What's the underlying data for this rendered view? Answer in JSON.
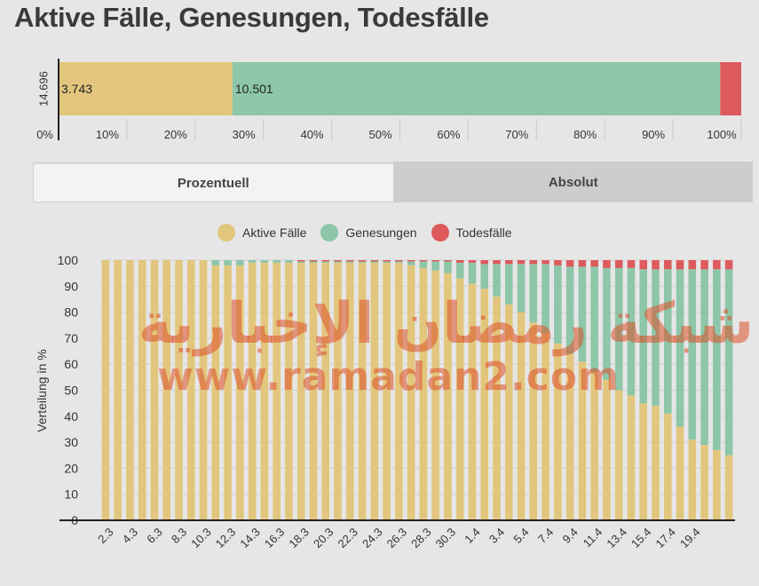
{
  "title": "Aktive Fälle, Genesungen, Todesfälle",
  "colors": {
    "active": "#e3c67d",
    "recovered": "#8dc6a8",
    "deaths": "#dd5a5d"
  },
  "summary": {
    "total_label": "14.696",
    "active_label": "3.743",
    "recovered_label": "10.501",
    "active_share": 0.2547,
    "recovered_share": 0.7145,
    "deaths_share": 0.0308,
    "ticks": [
      "0%",
      "10%",
      "20%",
      "30%",
      "40%",
      "50%",
      "60%",
      "70%",
      "80%",
      "90%",
      "100%"
    ]
  },
  "tabs": [
    {
      "label": "Prozentuell",
      "active": true
    },
    {
      "label": "Absolut",
      "active": false
    }
  ],
  "legend": [
    {
      "label": "Aktive Fälle",
      "color": "#e3c67d"
    },
    {
      "label": "Genesungen",
      "color": "#8dc6a8"
    },
    {
      "label": "Todesfälle",
      "color": "#dd5a5d"
    }
  ],
  "watermark": {
    "arabic": "شبكة رمضان الإخبارية",
    "url": "www.ramadan2.com"
  },
  "chart_data": {
    "type": "bar",
    "stacked": true,
    "ylabel": "Verteilung in %",
    "ylim": [
      0,
      100
    ],
    "yticks": [
      0,
      10,
      20,
      30,
      40,
      50,
      60,
      70,
      80,
      90,
      100
    ],
    "grid": true,
    "x_tick_labels": [
      "2.3",
      "4.3",
      "6.3",
      "8.3",
      "10.3",
      "12.3",
      "14.3",
      "16.3",
      "18.3",
      "20.3",
      "22.3",
      "24.3",
      "26.3",
      "28.3",
      "30.3",
      "1.4",
      "3.4",
      "5.4",
      "7.4",
      "9.4",
      "11.4",
      "13.4",
      "15.4",
      "17.4",
      "19.4"
    ],
    "series": [
      {
        "name": "Aktive Fälle",
        "values": [
          100,
          100,
          100,
          100,
          100,
          100,
          100,
          100,
          100,
          98,
          98,
          98,
          99,
          99,
          99,
          99,
          99,
          99,
          99,
          99,
          99,
          99,
          99,
          99,
          99,
          98,
          97,
          96,
          95,
          93,
          91,
          89,
          86,
          83,
          80,
          76,
          72,
          68,
          64,
          61,
          57,
          54,
          50,
          48,
          45,
          44,
          41,
          36,
          31,
          29,
          27,
          25
        ]
      },
      {
        "name": "Genesungen",
        "values": [
          0,
          0,
          0,
          0,
          0,
          0,
          0,
          0,
          0,
          2,
          2,
          2,
          1,
          1,
          1,
          1,
          0.5,
          0.5,
          0.5,
          0.5,
          0.5,
          0.5,
          0.5,
          0.5,
          0.5,
          1.5,
          2.5,
          3.5,
          4.5,
          6,
          8,
          9.5,
          12.5,
          15.5,
          18.5,
          22.5,
          26.5,
          30,
          33.5,
          36.5,
          40.5,
          43,
          47,
          49,
          51.5,
          52.5,
          55.5,
          60.5,
          65.5,
          67.5,
          69.5,
          71.5
        ]
      },
      {
        "name": "Todesfälle",
        "values": [
          0,
          0,
          0,
          0,
          0,
          0,
          0,
          0,
          0,
          0,
          0,
          0,
          0,
          0,
          0,
          0,
          0.5,
          0.5,
          0.5,
          0.5,
          0.5,
          0.5,
          0.5,
          0.5,
          0.5,
          0.5,
          0.5,
          0.5,
          0.5,
          1,
          1,
          1.5,
          1.5,
          1.5,
          1.5,
          1.5,
          1.5,
          2,
          2.5,
          2.5,
          2.5,
          3,
          3,
          3,
          3.5,
          3.5,
          3.5,
          3.5,
          3.5,
          3.5,
          3.5,
          3.5
        ]
      }
    ]
  }
}
